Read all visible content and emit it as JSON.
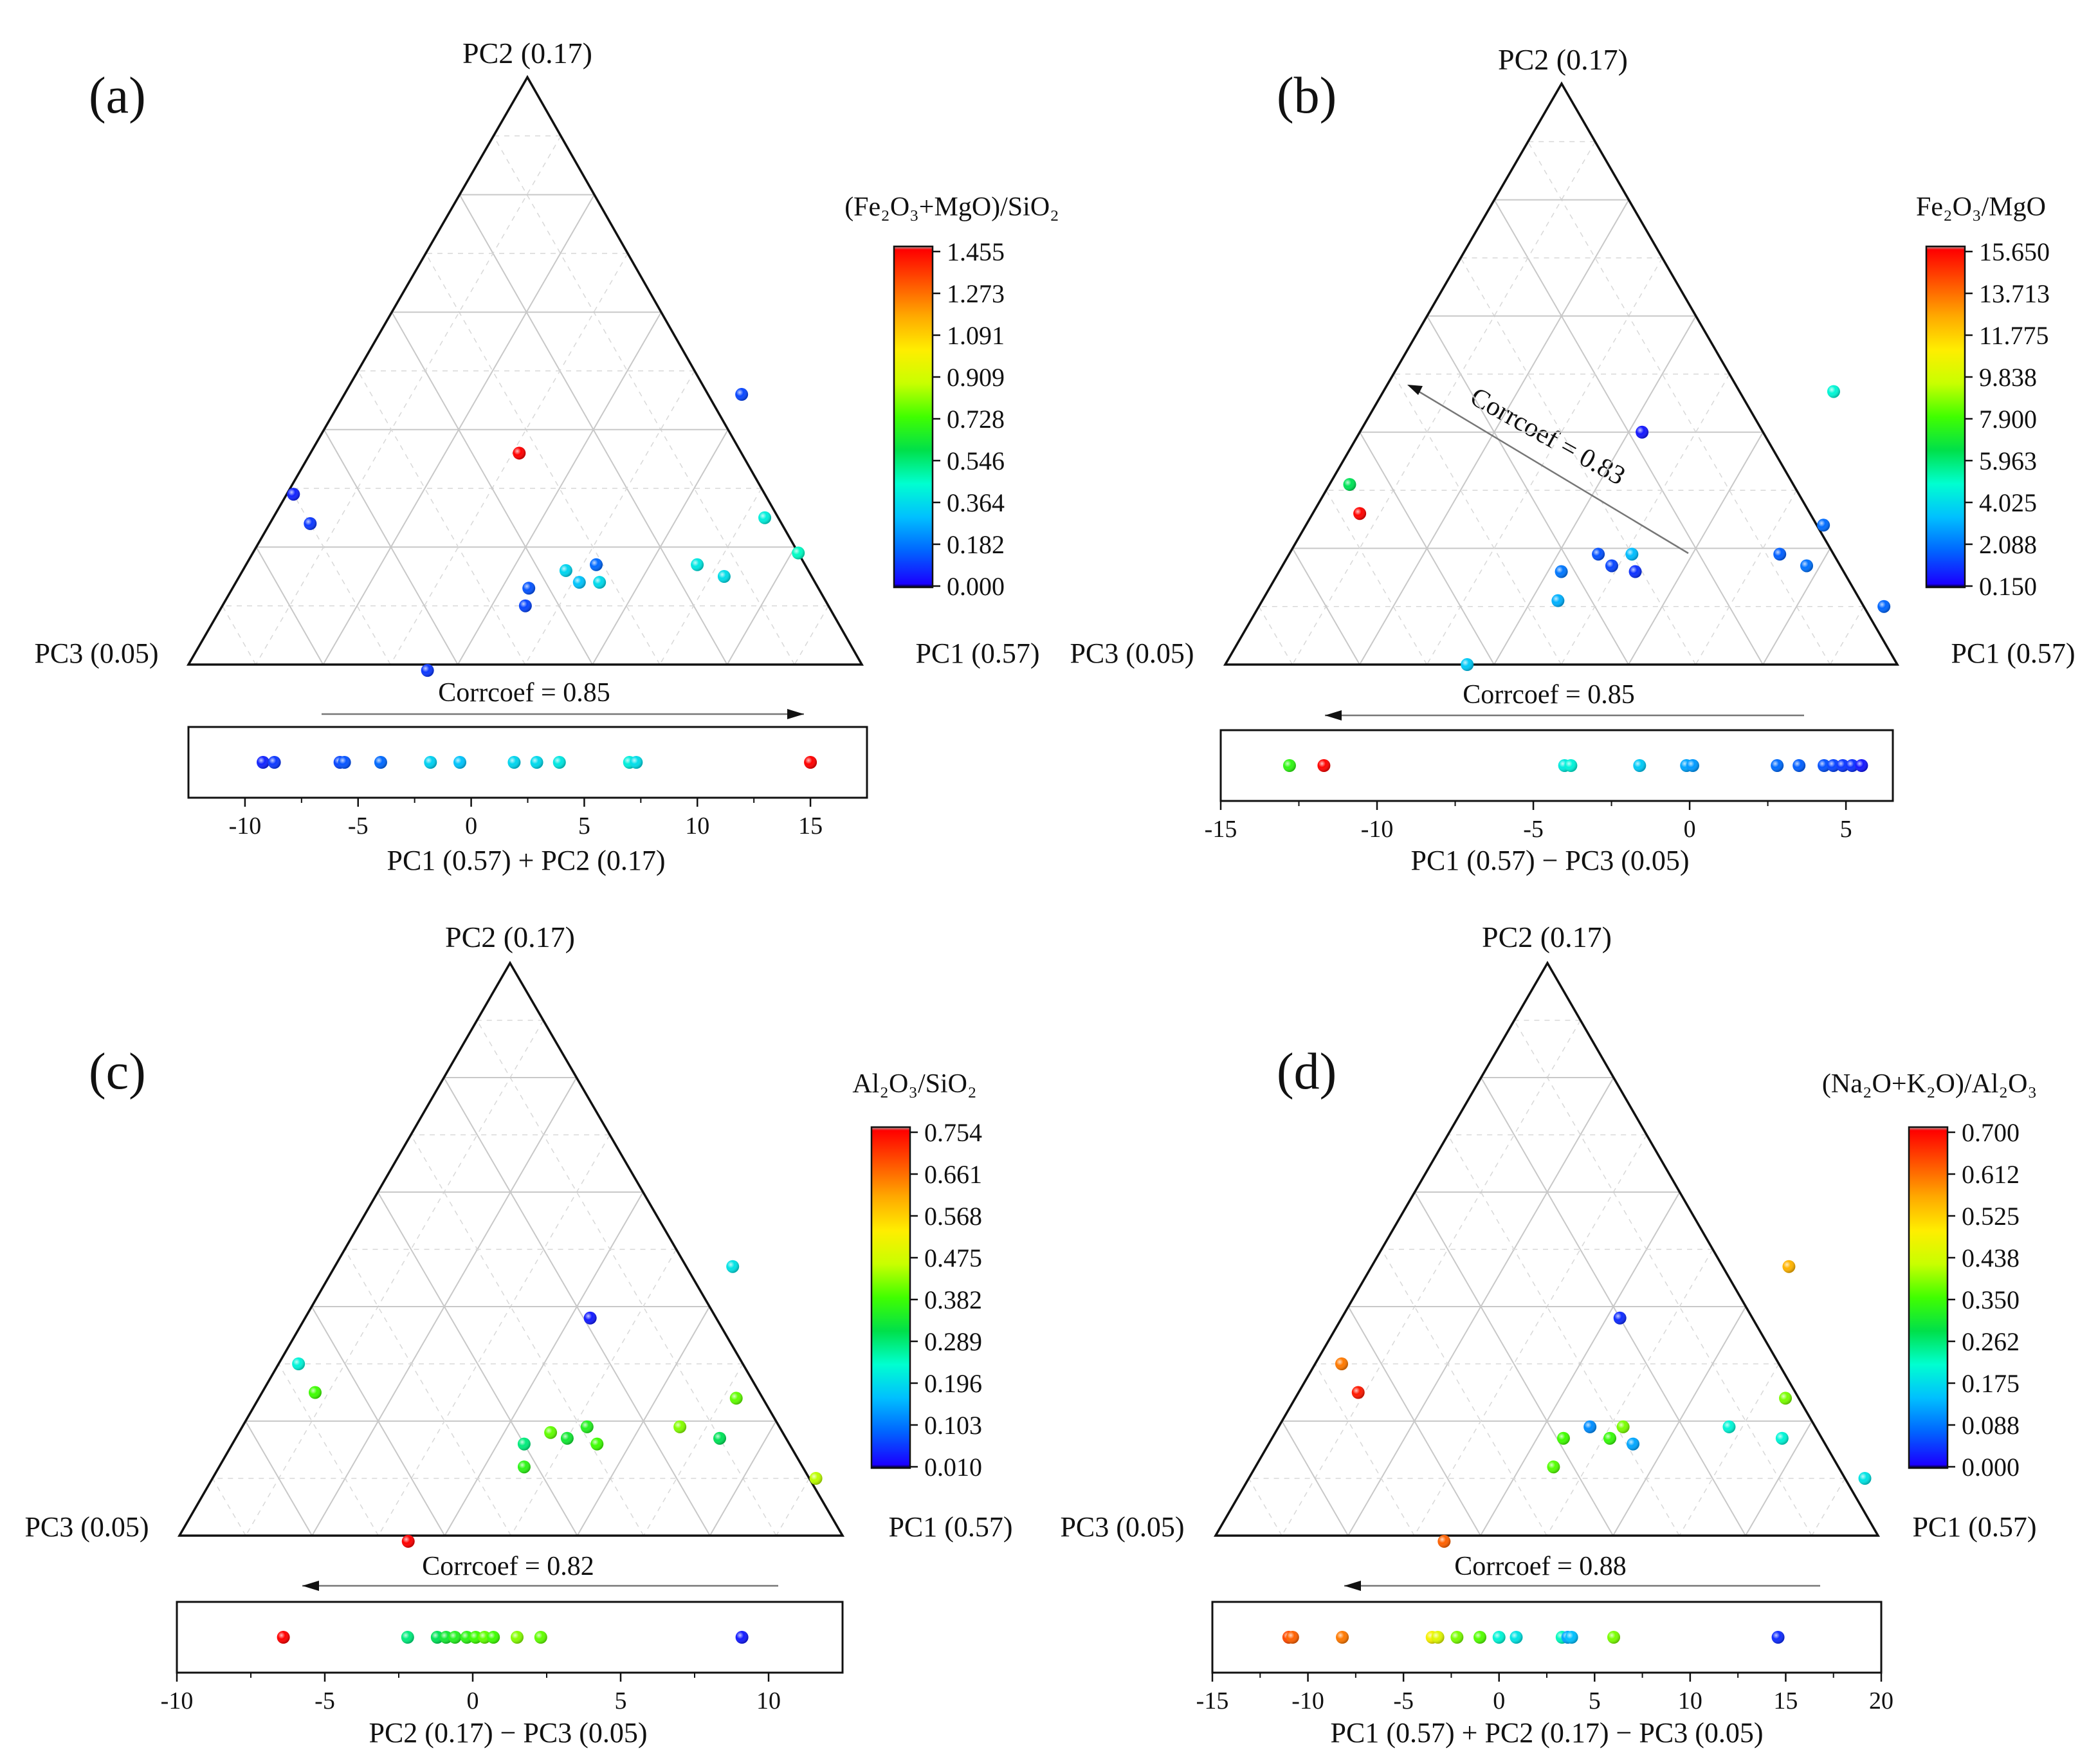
{
  "figure_title": "",
  "colorscale": [
    "#000000",
    "#1a00ff",
    "#0066ff",
    "#00c0ff",
    "#00ffd0",
    "#00e04a",
    "#40ff00",
    "#c8ff00",
    "#ffee00",
    "#ffaa00",
    "#ff5500",
    "#ff0000",
    "#aaaaaa"
  ],
  "panels": [
    {
      "letter": "(a)",
      "apex_top": "PC2 (0.17)",
      "apex_left": "PC3 (0.05)",
      "apex_right": "PC1 (0.57)",
      "colorbar_title": "(Fe₂O₃+MgO)/SiO₂",
      "colorbar_ticks": [
        "1.455",
        "1.273",
        "1.091",
        "0.909",
        "0.728",
        "0.546",
        "0.364",
        "0.182",
        "0.000"
      ],
      "corr_label": "Corrcoef = 0.85",
      "arrow_dir": "right",
      "strip_xlabel": "PC1 (0.57) + PC2 (0.17)",
      "strip_ticks": [
        "-10",
        "-5",
        "0",
        "5",
        "10",
        "15"
      ]
    },
    {
      "letter": "(b)",
      "apex_top": "PC2 (0.17)",
      "apex_left": "PC3 (0.05)",
      "apex_right": "PC1 (0.57)",
      "colorbar_title": "Fe₂O₃/MgO",
      "colorbar_ticks": [
        "15.650",
        "13.713",
        "11.775",
        "9.838",
        "7.900",
        "5.963",
        "4.025",
        "2.088",
        "0.150"
      ],
      "corr_label": "Corrcoef = 0.85",
      "arrow_dir": "left",
      "inner_corr_label": "Corrcoef = 0.83",
      "strip_xlabel": "PC1 (0.57) − PC3 (0.05)",
      "strip_ticks": [
        "-15",
        "-10",
        "-5",
        "0",
        "5"
      ]
    },
    {
      "letter": "(c)",
      "apex_top": "PC2 (0.17)",
      "apex_left": "PC3 (0.05)",
      "apex_right": "PC1 (0.57)",
      "colorbar_title": "Al₂O₃/SiO₂",
      "colorbar_ticks": [
        "0.754",
        "0.661",
        "0.568",
        "0.475",
        "0.382",
        "0.289",
        "0.196",
        "0.103",
        "0.010"
      ],
      "corr_label": "Corrcoef = 0.82",
      "arrow_dir": "left",
      "strip_xlabel": "PC2 (0.17) − PC3 (0.05)",
      "strip_ticks": [
        "-10",
        "-5",
        "0",
        "5",
        "10"
      ]
    },
    {
      "letter": "(d)",
      "apex_top": "PC2 (0.17)",
      "apex_left": "PC3 (0.05)",
      "apex_right": "PC1 (0.57)",
      "colorbar_title": "(Na₂O+K₂O)/Al₂O₃",
      "colorbar_ticks": [
        "0.700",
        "0.612",
        "0.525",
        "0.438",
        "0.350",
        "0.262",
        "0.175",
        "0.088",
        "0.000"
      ],
      "corr_label": "Corrcoef = 0.88",
      "arrow_dir": "left",
      "strip_xlabel": "PC1 (0.57) + PC2 (0.17) − PC3 (0.05)",
      "strip_ticks": [
        "-15",
        "-10",
        "-5",
        "0",
        "5",
        "10",
        "15",
        "20"
      ]
    }
  ],
  "chart_data": [
    {
      "type": "scatter",
      "title": "(a)",
      "ternary_axes": {
        "top": "PC2 (0.17)",
        "left": "PC3 (0.05)",
        "right": "PC1 (0.57)"
      },
      "colorbar": {
        "title": "(Fe₂O₃+MgO)/SiO₂",
        "range": [
          0.0,
          1.455
        ]
      },
      "ternary_points": [
        {
          "pc1": 0.59,
          "pc2": 0.46,
          "pc3": -0.05,
          "value": 0.1
        },
        {
          "pc1": 0.31,
          "pc2": 0.36,
          "pc3": 0.33,
          "value": 1.455
        },
        {
          "pc1": 0.01,
          "pc2": 0.29,
          "pc3": 0.7,
          "value": 0.05
        },
        {
          "pc1": 0.06,
          "pc2": 0.24,
          "pc3": 0.7,
          "value": 0.08
        },
        {
          "pc1": 0.81,
          "pc2": 0.19,
          "pc3": 0.0,
          "value": 0.45
        },
        {
          "pc1": 0.73,
          "pc2": 0.25,
          "pc3": 0.02,
          "value": 0.4
        },
        {
          "pc1": 0.67,
          "pc2": 0.17,
          "pc3": 0.16,
          "value": 0.38
        },
        {
          "pc1": 0.72,
          "pc2": 0.15,
          "pc3": 0.13,
          "value": 0.36
        },
        {
          "pc1": 0.52,
          "pc2": 0.17,
          "pc3": 0.31,
          "value": 0.15
        },
        {
          "pc1": 0.48,
          "pc2": 0.16,
          "pc3": 0.36,
          "value": 0.34
        },
        {
          "pc1": 0.51,
          "pc2": 0.14,
          "pc3": 0.35,
          "value": 0.3
        },
        {
          "pc1": 0.54,
          "pc2": 0.14,
          "pc3": 0.32,
          "value": 0.35
        },
        {
          "pc1": 0.44,
          "pc2": 0.13,
          "pc3": 0.43,
          "value": 0.12
        },
        {
          "pc1": 0.45,
          "pc2": 0.1,
          "pc3": 0.45,
          "value": 0.1
        },
        {
          "pc1": 0.36,
          "pc2": -0.01,
          "pc3": 0.65,
          "value": 0.08
        }
      ],
      "strip": {
        "xlabel": "PC1 (0.57) + PC2 (0.17)",
        "xlim": [
          -12.5,
          17.5
        ],
        "points": [
          {
            "x": -9.2,
            "value": 0.05
          },
          {
            "x": -8.7,
            "value": 0.08
          },
          {
            "x": -5.8,
            "value": 0.1
          },
          {
            "x": -5.6,
            "value": 0.12
          },
          {
            "x": -4.0,
            "value": 0.15
          },
          {
            "x": -1.8,
            "value": 0.33
          },
          {
            "x": -0.5,
            "value": 0.3
          },
          {
            "x": 1.9,
            "value": 0.34
          },
          {
            "x": 2.9,
            "value": 0.35
          },
          {
            "x": 3.9,
            "value": 0.38
          },
          {
            "x": 7.0,
            "value": 0.4
          },
          {
            "x": 7.3,
            "value": 0.36
          },
          {
            "x": 15.0,
            "value": 1.455
          }
        ]
      }
    },
    {
      "type": "scatter",
      "title": "(b)",
      "ternary_axes": {
        "top": "PC2 (0.17)",
        "left": "PC3 (0.05)",
        "right": "PC1 (0.57)"
      },
      "colorbar": {
        "title": "Fe₂O₃/MgO",
        "range": [
          0.15,
          15.65
        ]
      },
      "ternary_points": [
        {
          "pc1": 0.67,
          "pc2": 0.47,
          "pc3": -0.14,
          "value": 4.6
        },
        {
          "pc1": 0.42,
          "pc2": 0.4,
          "pc3": 0.18,
          "value": 0.5
        },
        {
          "pc1": 0.03,
          "pc2": 0.31,
          "pc3": 0.66,
          "value": 6.2
        },
        {
          "pc1": 0.07,
          "pc2": 0.26,
          "pc3": 0.67,
          "value": 15.6
        },
        {
          "pc1": 0.77,
          "pc2": 0.24,
          "pc3": -0.01,
          "value": 1.8
        },
        {
          "pc1": 0.73,
          "pc2": 0.19,
          "pc3": 0.08,
          "value": 1.6
        },
        {
          "pc1": 0.78,
          "pc2": 0.17,
          "pc3": 0.05,
          "value": 1.9
        },
        {
          "pc1": 0.93,
          "pc2": 0.1,
          "pc3": -0.03,
          "value": 1.7
        },
        {
          "pc1": 0.51,
          "pc2": 0.19,
          "pc3": 0.3,
          "value": 3.2
        },
        {
          "pc1": 0.46,
          "pc2": 0.19,
          "pc3": 0.35,
          "value": 1.4
        },
        {
          "pc1": 0.49,
          "pc2": 0.17,
          "pc3": 0.34,
          "value": 1.2
        },
        {
          "pc1": 0.53,
          "pc2": 0.16,
          "pc3": 0.31,
          "value": 0.9
        },
        {
          "pc1": 0.42,
          "pc2": 0.16,
          "pc3": 0.42,
          "value": 2.0
        },
        {
          "pc1": 0.44,
          "pc2": 0.11,
          "pc3": 0.45,
          "value": 3.0
        },
        {
          "pc1": 0.36,
          "pc2": 0.0,
          "pc3": 0.64,
          "value": 3.5
        }
      ],
      "strip": {
        "xlabel": "PC1 (0.57) − PC3 (0.05)",
        "xlim": [
          -15,
          6.5
        ],
        "points": [
          {
            "x": -12.8,
            "value": 7.5
          },
          {
            "x": -11.7,
            "value": 15.6
          },
          {
            "x": -4.0,
            "value": 4.3
          },
          {
            "x": -3.8,
            "value": 4.5
          },
          {
            "x": -1.6,
            "value": 3.5
          },
          {
            "x": -0.1,
            "value": 2.8
          },
          {
            "x": 0.1,
            "value": 2.6
          },
          {
            "x": 2.8,
            "value": 1.8
          },
          {
            "x": 3.5,
            "value": 1.6
          },
          {
            "x": 4.3,
            "value": 1.4
          },
          {
            "x": 4.6,
            "value": 1.2
          },
          {
            "x": 4.9,
            "value": 1.0
          },
          {
            "x": 5.2,
            "value": 0.9
          },
          {
            "x": 5.5,
            "value": 0.5
          }
        ]
      }
    },
    {
      "type": "scatter",
      "title": "(c)",
      "ternary_axes": {
        "top": "PC2 (0.17)",
        "left": "PC3 (0.05)",
        "right": "PC1 (0.57)"
      },
      "colorbar": {
        "title": "Al₂O₃/SiO₂",
        "range": [
          0.01,
          0.754
        ]
      },
      "ternary_points": [
        {
          "pc1": 0.6,
          "pc2": 0.47,
          "pc3": -0.07,
          "value": 0.2
        },
        {
          "pc1": 0.43,
          "pc2": 0.38,
          "pc3": 0.19,
          "value": 0.03
        },
        {
          "pc1": 0.03,
          "pc2": 0.3,
          "pc3": 0.67,
          "value": 0.22
        },
        {
          "pc1": 0.08,
          "pc2": 0.25,
          "pc3": 0.67,
          "value": 0.38
        },
        {
          "pc1": 0.72,
          "pc2": 0.24,
          "pc3": 0.04,
          "value": 0.4
        },
        {
          "pc1": 0.66,
          "pc2": 0.19,
          "pc3": 0.15,
          "value": 0.42
        },
        {
          "pc1": 0.73,
          "pc2": 0.17,
          "pc3": 0.1,
          "value": 0.3
        },
        {
          "pc1": 0.91,
          "pc2": 0.1,
          "pc3": -0.01,
          "value": 0.45
        },
        {
          "pc1": 0.52,
          "pc2": 0.19,
          "pc3": 0.29,
          "value": 0.35
        },
        {
          "pc1": 0.47,
          "pc2": 0.18,
          "pc3": 0.35,
          "value": 0.4
        },
        {
          "pc1": 0.5,
          "pc2": 0.17,
          "pc3": 0.33,
          "value": 0.33
        },
        {
          "pc1": 0.55,
          "pc2": 0.16,
          "pc3": 0.29,
          "value": 0.38
        },
        {
          "pc1": 0.44,
          "pc2": 0.16,
          "pc3": 0.4,
          "value": 0.28
        },
        {
          "pc1": 0.46,
          "pc2": 0.12,
          "pc3": 0.42,
          "value": 0.36
        },
        {
          "pc1": 0.35,
          "pc2": -0.01,
          "pc3": 0.66,
          "value": 0.754
        }
      ],
      "strip": {
        "xlabel": "PC2 (0.17) − PC3 (0.05)",
        "xlim": [
          -10,
          12.5
        ],
        "points": [
          {
            "x": -6.4,
            "value": 0.754
          },
          {
            "x": -2.2,
            "value": 0.28
          },
          {
            "x": -1.2,
            "value": 0.3
          },
          {
            "x": -0.9,
            "value": 0.33
          },
          {
            "x": -0.6,
            "value": 0.35
          },
          {
            "x": -0.2,
            "value": 0.36
          },
          {
            "x": 0.1,
            "value": 0.38
          },
          {
            "x": 0.4,
            "value": 0.4
          },
          {
            "x": 0.7,
            "value": 0.38
          },
          {
            "x": 1.5,
            "value": 0.42
          },
          {
            "x": 2.3,
            "value": 0.4
          },
          {
            "x": 9.1,
            "value": 0.03
          }
        ]
      }
    },
    {
      "type": "scatter",
      "title": "(d)",
      "ternary_axes": {
        "top": "PC2 (0.17)",
        "left": "PC3 (0.05)",
        "right": "PC1 (0.57)"
      },
      "colorbar": {
        "title": "(Na₂O+K₂O)/Al₂O₃",
        "range": [
          0.0,
          0.7
        ]
      },
      "ternary_points": [
        {
          "pc1": 0.63,
          "pc2": 0.47,
          "pc3": -0.1,
          "value": 0.55
        },
        {
          "pc1": 0.42,
          "pc2": 0.38,
          "pc3": 0.2,
          "value": 0.03
        },
        {
          "pc1": 0.04,
          "pc2": 0.3,
          "pc3": 0.66,
          "value": 0.6
        },
        {
          "pc1": 0.09,
          "pc2": 0.25,
          "pc3": 0.66,
          "value": 0.68
        },
        {
          "pc1": 0.74,
          "pc2": 0.24,
          "pc3": 0.02,
          "value": 0.38
        },
        {
          "pc1": 0.68,
          "pc2": 0.19,
          "pc3": 0.13,
          "value": 0.2
        },
        {
          "pc1": 0.77,
          "pc2": 0.17,
          "pc3": 0.06,
          "value": 0.2
        },
        {
          "pc1": 0.93,
          "pc2": 0.1,
          "pc3": -0.03,
          "value": 0.18
        },
        {
          "pc1": 0.52,
          "pc2": 0.19,
          "pc3": 0.29,
          "value": 0.38
        },
        {
          "pc1": 0.47,
          "pc2": 0.19,
          "pc3": 0.34,
          "value": 0.1
        },
        {
          "pc1": 0.51,
          "pc2": 0.17,
          "pc3": 0.32,
          "value": 0.34
        },
        {
          "pc1": 0.55,
          "pc2": 0.16,
          "pc3": 0.29,
          "value": 0.12
        },
        {
          "pc1": 0.44,
          "pc2": 0.17,
          "pc3": 0.39,
          "value": 0.35
        },
        {
          "pc1": 0.45,
          "pc2": 0.12,
          "pc3": 0.43,
          "value": 0.36
        },
        {
          "pc1": 0.35,
          "pc2": -0.01,
          "pc3": 0.66,
          "value": 0.62
        }
      ],
      "strip": {
        "xlabel": "PC1 (0.57) + PC2 (0.17) − PC3 (0.05)",
        "xlim": [
          -15,
          20
        ],
        "points": [
          {
            "x": -11.0,
            "value": 0.64
          },
          {
            "x": -10.8,
            "value": 0.62
          },
          {
            "x": -8.2,
            "value": 0.6
          },
          {
            "x": -3.5,
            "value": 0.48
          },
          {
            "x": -3.2,
            "value": 0.45
          },
          {
            "x": -2.2,
            "value": 0.38
          },
          {
            "x": -1.0,
            "value": 0.36
          },
          {
            "x": 0.0,
            "value": 0.2
          },
          {
            "x": 0.9,
            "value": 0.18
          },
          {
            "x": 3.3,
            "value": 0.22
          },
          {
            "x": 3.6,
            "value": 0.12
          },
          {
            "x": 3.8,
            "value": 0.14
          },
          {
            "x": 6.0,
            "value": 0.38
          },
          {
            "x": 14.6,
            "value": 0.03
          }
        ]
      }
    }
  ]
}
